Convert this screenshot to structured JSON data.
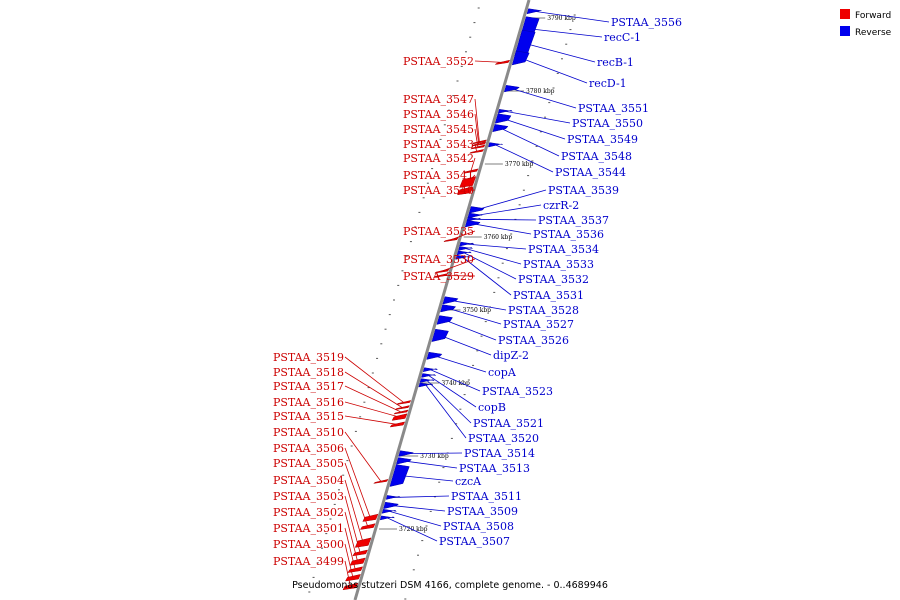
{
  "legend": [
    {
      "label": "Forward",
      "color": "#ee0000"
    },
    {
      "label": "Reverse",
      "color": "#0000ee"
    }
  ],
  "caption": "Pseudomonas stutzeri DSM 4166, complete genome. - 0..4689946",
  "scale_marks": [
    {
      "kbp": 3790,
      "label": "3790 kbp"
    },
    {
      "kbp": 3780,
      "label": "3780 kbp"
    },
    {
      "kbp": 3770,
      "label": "3770 kbp"
    },
    {
      "kbp": 3760,
      "label": "3760 kbp"
    },
    {
      "kbp": 3750,
      "label": "3750 kbp"
    },
    {
      "kbp": 3740,
      "label": "3740 kbp"
    },
    {
      "kbp": 3730,
      "label": "3730 kbp"
    },
    {
      "kbp": 3720,
      "label": "3720 kbp"
    }
  ],
  "forward_genes": [
    {
      "name": "PSTAA_3552",
      "kbp": 3784.2,
      "len": 0.6
    },
    {
      "name": "PSTAA_3547",
      "kbp": 3773.3,
      "len": 0.3
    },
    {
      "name": "PSTAA_3546",
      "kbp": 3773.0,
      "len": 0.3
    },
    {
      "name": "PSTAA_3545",
      "kbp": 3772.6,
      "len": 0.3
    },
    {
      "name": "PSTAA_3543",
      "kbp": 3772.0,
      "len": 0.5
    },
    {
      "name": "PSTAA_3542",
      "kbp": 3769.3,
      "len": 0.6
    },
    {
      "name": "PSTAA_3541",
      "kbp": 3767.8,
      "len": 1.5
    },
    {
      "name": "PSTAA_3540",
      "kbp": 3766.6,
      "len": 1.1
    },
    {
      "name": "PSTAA_3535",
      "kbp": 3759.9,
      "len": 0.4
    },
    {
      "name": "PSTAA_3530",
      "kbp": 3755.6,
      "len": 0.4
    },
    {
      "name": "PSTAA_3529",
      "kbp": 3755.0,
      "len": 0.5
    },
    {
      "name": "PSTAA_3519",
      "kbp": 3737.6,
      "len": 0.3
    },
    {
      "name": "PSTAA_3518",
      "kbp": 3736.9,
      "len": 0.3
    },
    {
      "name": "PSTAA_3517",
      "kbp": 3736.3,
      "len": 0.4
    },
    {
      "name": "PSTAA_3516",
      "kbp": 3735.6,
      "len": 0.9
    },
    {
      "name": "PSTAA_3515",
      "kbp": 3734.6,
      "len": 0.7
    },
    {
      "name": "PSTAA_3510",
      "kbp": 3726.8,
      "len": 0.4
    },
    {
      "name": "PSTAA_3506",
      "kbp": 3721.8,
      "len": 1.0
    },
    {
      "name": "PSTAA_3505",
      "kbp": 3720.6,
      "len": 0.8
    },
    {
      "name": "PSTAA_3504",
      "kbp": 3718.4,
      "len": 1.3
    },
    {
      "name": "PSTAA_3503",
      "kbp": 3717.0,
      "len": 0.8
    },
    {
      "name": "PSTAA_3502",
      "kbp": 3715.8,
      "len": 1.0
    },
    {
      "name": "PSTAA_3501",
      "kbp": 3714.7,
      "len": 0.8
    },
    {
      "name": "PSTAA_3500",
      "kbp": 3713.6,
      "len": 0.9
    },
    {
      "name": "PSTAA_3499",
      "kbp": 3712.4,
      "len": 0.9
    }
  ],
  "reverse_genes": [
    {
      "name": "PSTAA_3556",
      "kbp": 3791.2,
      "len": 0.7
    },
    {
      "name": "recC-1",
      "kbp": 3788.8,
      "len": 3.3
    },
    {
      "name": "recB-1",
      "kbp": 3786.8,
      "len": 3.6
    },
    {
      "name": "recD-1",
      "kbp": 3784.8,
      "len": 1.9
    },
    {
      "name": "PSTAA_3551",
      "kbp": 3780.6,
      "len": 0.9
    },
    {
      "name": "PSTAA_3550",
      "kbp": 3777.5,
      "len": 0.5
    },
    {
      "name": "PSTAA_3549",
      "kbp": 3776.5,
      "len": 1.3
    },
    {
      "name": "PSTAA_3548",
      "kbp": 3775.2,
      "len": 1.0
    },
    {
      "name": "PSTAA_3544",
      "kbp": 3772.9,
      "len": 0.6
    },
    {
      "name": "PSTAA_3539",
      "kbp": 3764.0,
      "len": 0.9
    },
    {
      "name": "czrR-2",
      "kbp": 3763.2,
      "len": 0.7
    },
    {
      "name": "PSTAA_3537",
      "kbp": 3762.7,
      "len": 0.4
    },
    {
      "name": "PSTAA_3536",
      "kbp": 3762.1,
      "len": 0.9
    },
    {
      "name": "PSTAA_3534",
      "kbp": 3759.3,
      "len": 0.4
    },
    {
      "name": "PSTAA_3533",
      "kbp": 3758.7,
      "len": 0.4
    },
    {
      "name": "PSTAA_3532",
      "kbp": 3758.1,
      "len": 0.4
    },
    {
      "name": "PSTAA_3531",
      "kbp": 3757.5,
      "len": 0.4
    },
    {
      "name": "PSTAA_3528",
      "kbp": 3751.6,
      "len": 1.0
    },
    {
      "name": "PSTAA_3527",
      "kbp": 3750.5,
      "len": 1.0
    },
    {
      "name": "PSTAA_3526",
      "kbp": 3748.9,
      "len": 1.2
    },
    {
      "name": "dipZ-2",
      "kbp": 3746.8,
      "len": 1.7
    },
    {
      "name": "copA",
      "kbp": 3744.0,
      "len": 1.0
    },
    {
      "name": "PSTAA_3523",
      "kbp": 3742.1,
      "len": 0.4
    },
    {
      "name": "copB",
      "kbp": 3741.3,
      "len": 0.5
    },
    {
      "name": "PSTAA_3521",
      "kbp": 3740.6,
      "len": 0.4
    },
    {
      "name": "PSTAA_3520",
      "kbp": 3740.0,
      "len": 0.4
    },
    {
      "name": "PSTAA_3514",
      "kbp": 3730.6,
      "len": 0.8
    },
    {
      "name": "PSTAA_3513",
      "kbp": 3729.6,
      "len": 0.9
    },
    {
      "name": "czcA",
      "kbp": 3727.6,
      "len": 3.0
    },
    {
      "name": "PSTAA_3511",
      "kbp": 3724.6,
      "len": 0.4
    },
    {
      "name": "PSTAA_3509",
      "kbp": 3723.5,
      "len": 0.9
    },
    {
      "name": "PSTAA_3508",
      "kbp": 3722.7,
      "len": 0.4
    },
    {
      "name": "PSTAA_3507",
      "kbp": 3721.8,
      "len": 0.4
    }
  ]
}
